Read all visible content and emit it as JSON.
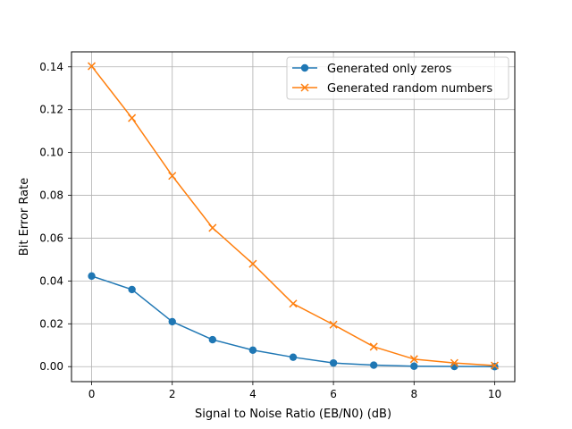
{
  "chart_data": {
    "type": "line",
    "title": "",
    "xlabel": "Signal to Noise Ratio (EB/N0) (dB)",
    "ylabel": "Bit Error Rate",
    "x": [
      0,
      1,
      2,
      3,
      4,
      5,
      6,
      7,
      8,
      9,
      10
    ],
    "xlim": [
      -0.5,
      10.5
    ],
    "ylim": [
      -0.007,
      0.147
    ],
    "xticks": [
      0,
      2,
      4,
      6,
      8,
      10
    ],
    "xtick_labels": [
      "0",
      "2",
      "4",
      "6",
      "8",
      "10"
    ],
    "yticks": [
      0.0,
      0.02,
      0.04,
      0.06,
      0.08,
      0.1,
      0.12,
      0.14
    ],
    "ytick_labels": [
      "0.00",
      "0.02",
      "0.04",
      "0.06",
      "0.08",
      "0.10",
      "0.12",
      "0.14"
    ],
    "grid": true,
    "legend_position": "top-right",
    "series": [
      {
        "name": "Generated only zeros",
        "color": "#1f77b4",
        "marker": "circle",
        "values": [
          0.0423,
          0.036,
          0.021,
          0.0126,
          0.0077,
          0.0044,
          0.0017,
          0.0007,
          0.0002,
          0.0001,
          0.0
        ]
      },
      {
        "name": "Generated random numbers",
        "color": "#ff7f0e",
        "marker": "x",
        "values": [
          0.1403,
          0.1161,
          0.0891,
          0.0648,
          0.048,
          0.0294,
          0.0196,
          0.0093,
          0.0035,
          0.0017,
          0.0005
        ]
      }
    ]
  }
}
